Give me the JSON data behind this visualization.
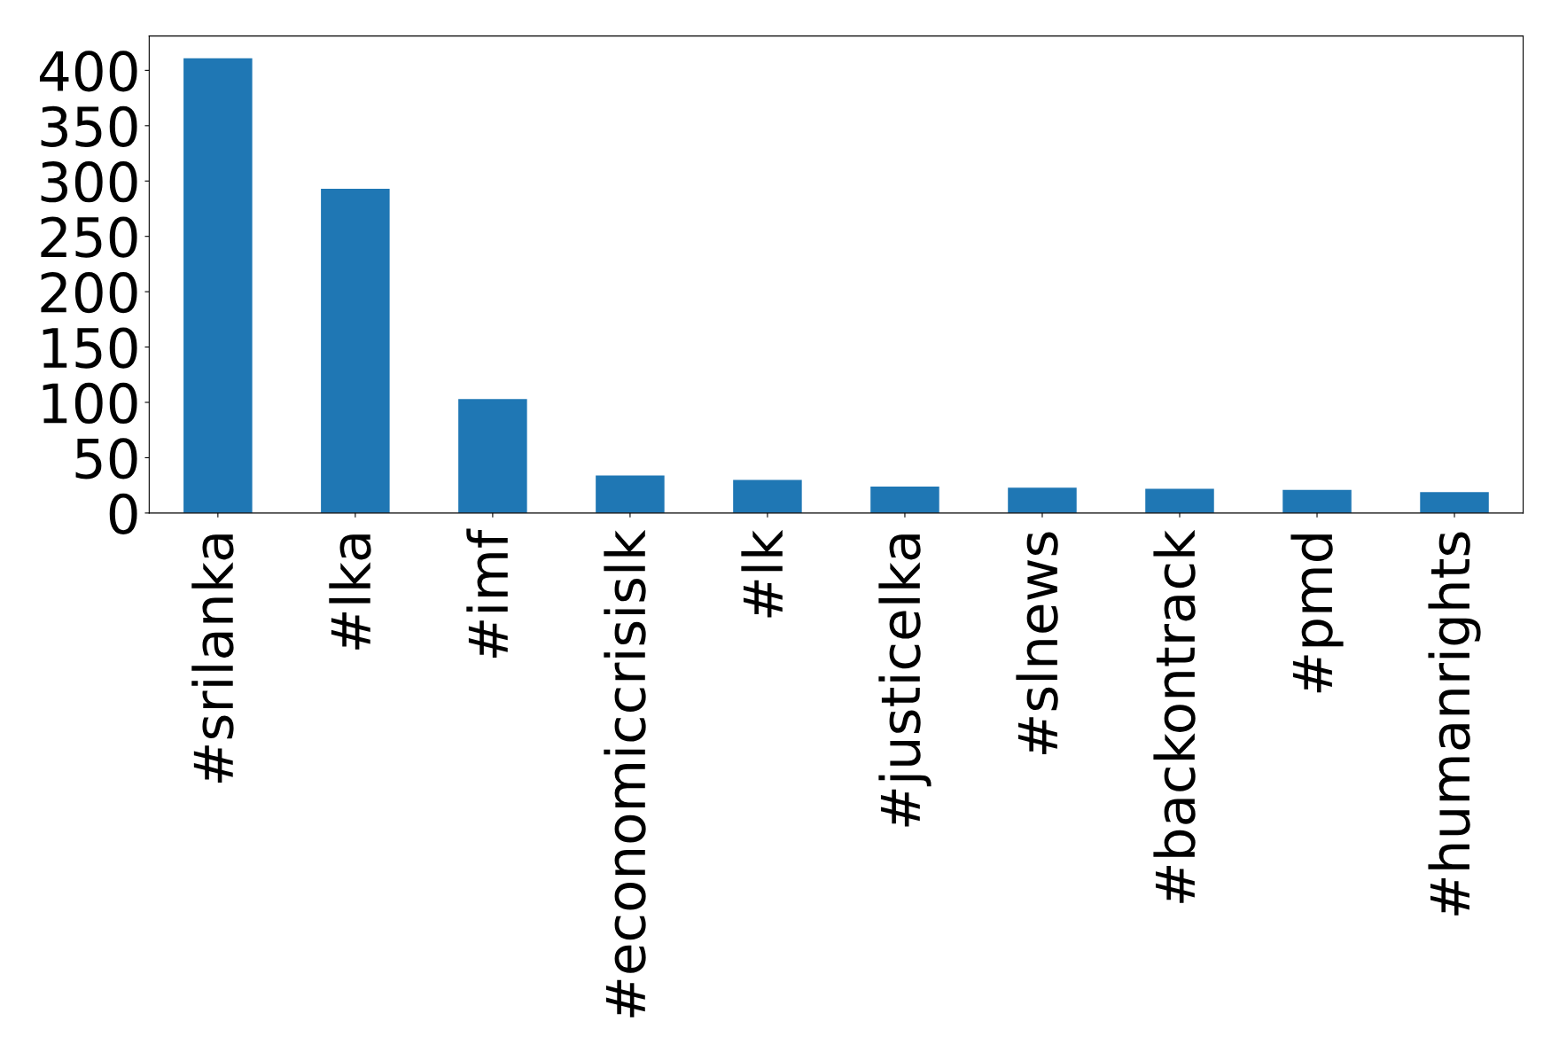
{
  "chart_data": {
    "type": "bar",
    "categories": [
      "#srilanka",
      "#lka",
      "#imf",
      "#economiccrisislk",
      "#lk",
      "#justicelka",
      "#slnews",
      "#backontrack",
      "#pmd",
      "#humanrights"
    ],
    "values": [
      411,
      293,
      103,
      34,
      30,
      24,
      23,
      22,
      21,
      19
    ],
    "color": "#1f77b4",
    "ylim": [
      0,
      431
    ],
    "yticks": [
      0,
      50,
      100,
      150,
      200,
      250,
      300,
      350,
      400
    ],
    "grid": false
  }
}
